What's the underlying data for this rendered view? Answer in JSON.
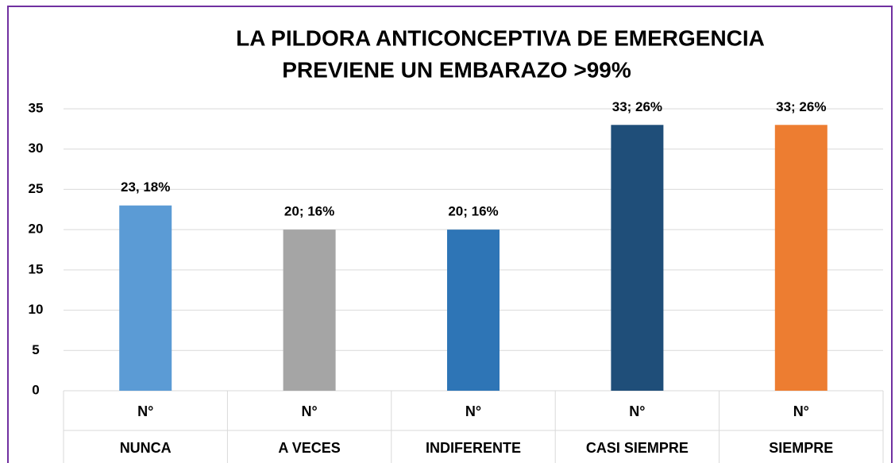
{
  "chart_data": {
    "type": "bar",
    "title": [
      "LA PILDORA ANTICONCEPTIVA DE EMERGENCIA",
      "PREVIENE UN EMBARAZO >99%"
    ],
    "categories": [
      "NUNCA",
      "A VECES",
      "INDIFERENTE",
      "CASI SIEMPRE",
      "SIEMPRE"
    ],
    "series": [
      {
        "name": "N°",
        "values": [
          23,
          20,
          20,
          33,
          33
        ],
        "value_labels": [
          "23, 18%",
          "20; 16%",
          "20; 16%",
          "33; 26%",
          "33; 26%"
        ],
        "colors": [
          "#5b9bd5",
          "#a5a5a5",
          "#2e75b6",
          "#1f4e79",
          "#ed7d31"
        ]
      }
    ],
    "ylim": [
      0,
      35
    ],
    "yticks": [
      0,
      5,
      10,
      15,
      20,
      25,
      30,
      35
    ],
    "grid": true
  }
}
